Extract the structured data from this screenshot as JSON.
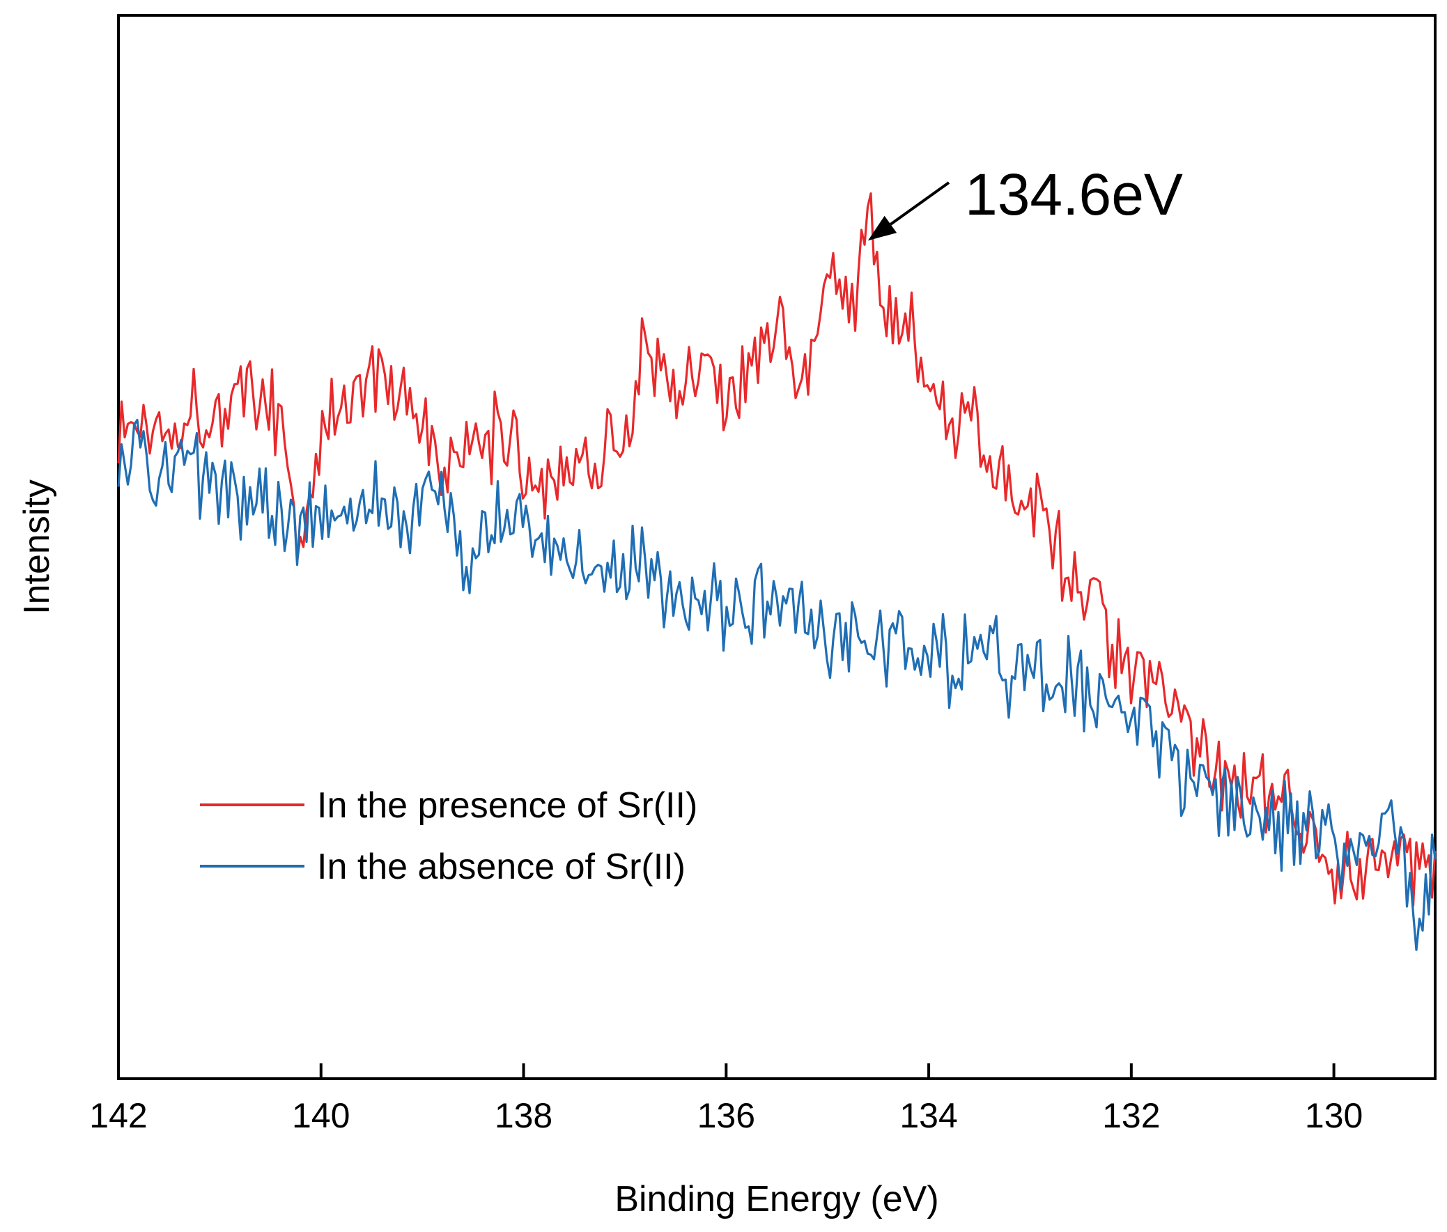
{
  "chart_data": {
    "type": "line",
    "title": "",
    "xlabel": "Binding Energy (eV)",
    "ylabel": "Intensity",
    "xlim": [
      142,
      129
    ],
    "ylim": [
      0,
      100
    ],
    "x_ticks": [
      "142",
      "140",
      "138",
      "136",
      "134",
      "132",
      "130"
    ],
    "x_tick_values": [
      142,
      140,
      138,
      136,
      134,
      132,
      130
    ],
    "y_ticks_shown": false,
    "grid": false,
    "legend_position": "lower-left",
    "annotation": {
      "text": "134.6eV",
      "x": 134.6,
      "y": 80
    },
    "series": [
      {
        "name": "In the presence of Sr(II)",
        "color": "#e8292b",
        "points": [
          [
            142.0,
            61
          ],
          [
            141.6,
            62
          ],
          [
            141.2,
            63
          ],
          [
            140.8,
            64
          ],
          [
            140.4,
            63
          ],
          [
            140.2,
            49
          ],
          [
            140.0,
            60
          ],
          [
            139.8,
            64
          ],
          [
            139.4,
            66
          ],
          [
            139.0,
            62
          ],
          [
            138.8,
            56
          ],
          [
            138.5,
            59
          ],
          [
            138.2,
            61
          ],
          [
            137.8,
            56
          ],
          [
            137.5,
            58
          ],
          [
            137.0,
            60
          ],
          [
            136.8,
            69
          ],
          [
            136.5,
            65
          ],
          [
            136.2,
            68
          ],
          [
            136.0,
            63
          ],
          [
            135.8,
            66
          ],
          [
            135.5,
            70
          ],
          [
            135.2,
            67
          ],
          [
            135.0,
            75
          ],
          [
            134.8,
            72
          ],
          [
            134.6,
            80
          ],
          [
            134.4,
            72
          ],
          [
            134.2,
            71
          ],
          [
            134.0,
            65
          ],
          [
            133.8,
            60
          ],
          [
            133.6,
            62
          ],
          [
            133.4,
            58
          ],
          [
            133.2,
            57
          ],
          [
            133.0,
            54
          ],
          [
            132.8,
            53
          ],
          [
            132.6,
            44
          ],
          [
            132.4,
            48
          ],
          [
            132.2,
            42
          ],
          [
            132.0,
            38
          ],
          [
            131.8,
            36
          ],
          [
            131.6,
            34
          ],
          [
            131.4,
            33
          ],
          [
            131.2,
            30
          ],
          [
            131.0,
            28
          ],
          [
            130.8,
            27
          ],
          [
            130.6,
            25
          ],
          [
            130.4,
            24
          ],
          [
            130.2,
            22
          ],
          [
            130.0,
            21
          ],
          [
            129.8,
            20
          ],
          [
            129.6,
            20
          ],
          [
            129.4,
            21
          ],
          [
            129.2,
            19
          ],
          [
            129.0,
            22
          ]
        ]
      },
      {
        "name": "In the absence of Sr(II)",
        "color": "#1f6eb4",
        "points": [
          [
            142.0,
            56
          ],
          [
            141.8,
            60
          ],
          [
            141.6,
            57
          ],
          [
            141.4,
            58
          ],
          [
            141.2,
            56
          ],
          [
            141.0,
            54
          ],
          [
            140.6,
            55
          ],
          [
            140.3,
            51
          ],
          [
            140.0,
            54
          ],
          [
            139.8,
            55
          ],
          [
            139.4,
            54
          ],
          [
            139.0,
            53
          ],
          [
            138.8,
            55
          ],
          [
            138.6,
            48
          ],
          [
            138.4,
            52
          ],
          [
            138.0,
            52
          ],
          [
            137.8,
            51
          ],
          [
            137.5,
            49
          ],
          [
            137.0,
            49
          ],
          [
            136.8,
            48
          ],
          [
            136.6,
            46
          ],
          [
            136.4,
            45
          ],
          [
            136.0,
            44
          ],
          [
            135.6,
            45
          ],
          [
            135.2,
            43
          ],
          [
            135.0,
            41
          ],
          [
            134.8,
            42
          ],
          [
            134.6,
            42
          ],
          [
            134.4,
            40
          ],
          [
            134.0,
            41
          ],
          [
            133.8,
            39
          ],
          [
            133.6,
            40
          ],
          [
            133.4,
            41
          ],
          [
            133.2,
            38
          ],
          [
            133.0,
            39
          ],
          [
            132.8,
            36
          ],
          [
            132.6,
            37
          ],
          [
            132.4,
            36
          ],
          [
            132.2,
            37
          ],
          [
            132.0,
            34
          ],
          [
            131.8,
            33
          ],
          [
            131.6,
            30
          ],
          [
            131.4,
            28
          ],
          [
            131.2,
            27
          ],
          [
            131.0,
            26
          ],
          [
            130.8,
            25
          ],
          [
            130.6,
            24
          ],
          [
            130.4,
            24
          ],
          [
            130.2,
            23
          ],
          [
            130.0,
            22
          ],
          [
            129.8,
            21
          ],
          [
            129.6,
            23
          ],
          [
            129.4,
            24
          ],
          [
            129.2,
            16
          ],
          [
            129.0,
            21
          ]
        ]
      }
    ]
  }
}
